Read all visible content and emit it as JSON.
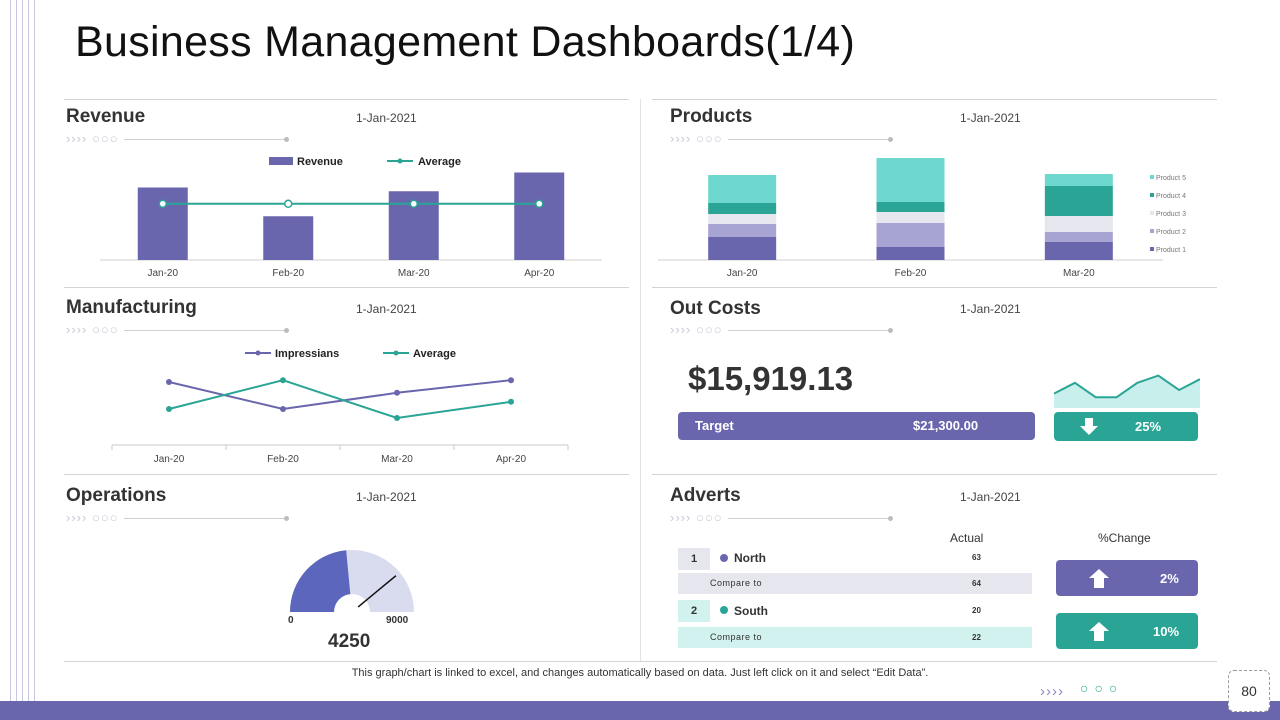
{
  "title": "Business Management Dashboards(1/4)",
  "decor": {
    "chevrons": "››››"
  },
  "colors": {
    "purple": "#6a66ae",
    "teal": "#2aa595",
    "light_purple": "#a7a4d3",
    "light_gray": "#e6e6ef",
    "mint": "#6ed8cf",
    "gauge_blue": "#5b66bc",
    "gauge_light": "#d9dbee"
  },
  "revenue": {
    "title": "Revenue",
    "date": "1-Jan-2021",
    "chart_data": {
      "type": "bar",
      "categories": [
        "Jan-20",
        "Feb-20",
        "Mar-20",
        "Apr-20"
      ],
      "series": [
        {
          "name": "Revenue",
          "values": [
            58,
            35,
            55,
            70
          ]
        },
        {
          "name": "Average",
          "values": [
            45,
            45,
            45,
            45
          ]
        }
      ],
      "ylim": [
        0,
        80
      ]
    }
  },
  "products": {
    "title": "Products",
    "date": "1-Jan-2021",
    "chart_data": {
      "type": "bar",
      "stacked": true,
      "categories": [
        "Jan-20",
        "Feb-20",
        "Mar-20"
      ],
      "series": [
        {
          "name": "Product 1",
          "values": [
            23,
            13,
            18
          ]
        },
        {
          "name": "Product 2",
          "values": [
            13,
            24,
            10
          ]
        },
        {
          "name": "Product 3",
          "values": [
            10,
            11,
            16
          ]
        },
        {
          "name": "Product 4",
          "values": [
            11,
            10,
            30
          ]
        },
        {
          "name": "Product 5",
          "values": [
            28,
            44,
            12
          ]
        }
      ],
      "ylim": [
        0,
        102
      ]
    }
  },
  "manufacturing": {
    "title": "Manufacturing",
    "date": "1-Jan-2021",
    "chart_data": {
      "type": "line",
      "categories": [
        "Jan-20",
        "Feb-20",
        "Mar-20",
        "Apr-20"
      ],
      "series": [
        {
          "name": "Impressians",
          "values": [
            70,
            40,
            58,
            72
          ]
        },
        {
          "name": "Average",
          "values": [
            40,
            72,
            30,
            48
          ]
        }
      ],
      "ylim": [
        0,
        100
      ]
    }
  },
  "out_costs": {
    "title": "Out Costs",
    "date": "1-Jan-2021",
    "value": "$15,919.13",
    "target_label": "Target",
    "target_value": "$21,300.00",
    "change": "25%",
    "change_direction": "down",
    "sparkline": [
      4,
      7,
      3,
      3,
      7,
      9,
      5,
      8
    ]
  },
  "operations": {
    "title": "Operations",
    "date": "1-Jan-2021",
    "gauge_min": "0",
    "gauge_max": "9000",
    "gauge_value": "4250",
    "gauge_fraction": 0.47
  },
  "adverts": {
    "title": "Adverts",
    "date": "1-Jan-2021",
    "col_actual": "Actual",
    "col_change": "%Change",
    "rows": [
      {
        "num": "1",
        "region": "North",
        "actual": "63",
        "compare_label": "Compare to",
        "compare": "64",
        "change": "2%",
        "direction": "up"
      },
      {
        "num": "2",
        "region": "South",
        "actual": "20",
        "compare_label": "Compare to",
        "compare": "22",
        "change": "10%",
        "direction": "up"
      }
    ]
  },
  "footer": {
    "note": "This graph/chart is linked to excel, and changes automatically based on data. Just left click on it and select “Edit Data”.",
    "page": "80"
  }
}
